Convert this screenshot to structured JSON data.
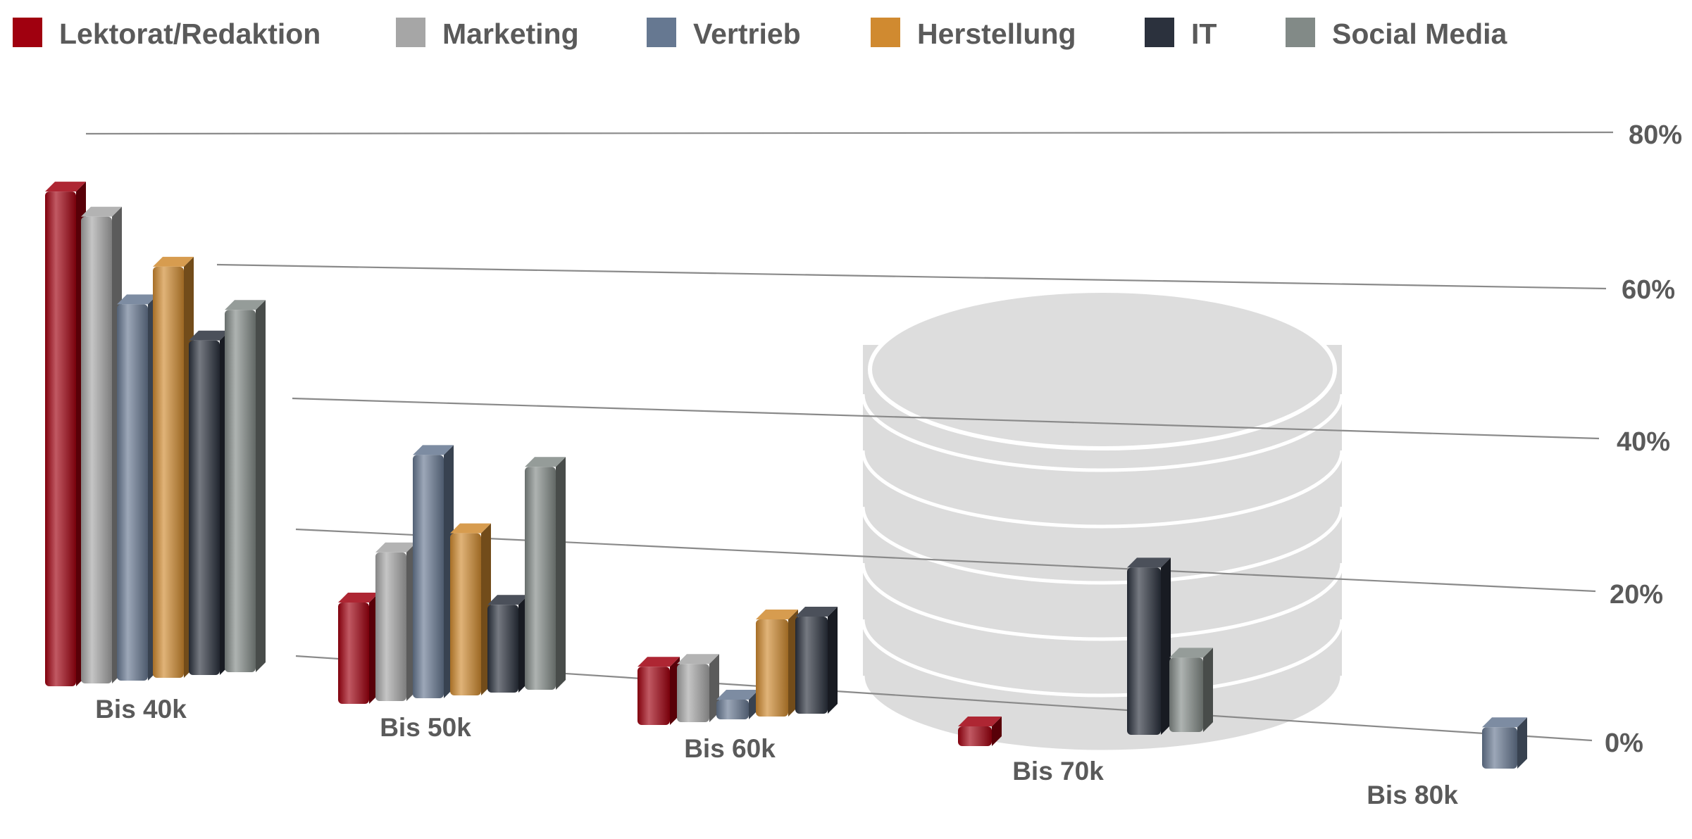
{
  "chart_data": {
    "type": "bar",
    "categories": [
      "Bis 40k",
      "Bis 50k",
      "Bis 60k",
      "Bis 70k",
      "Bis 80k"
    ],
    "series": [
      {
        "name": "Lektorat/Redaktion",
        "color": "#a0000f",
        "values": [
          71,
          15,
          9,
          2,
          0
        ]
      },
      {
        "name": "Marketing",
        "color": "#a6a6a6",
        "values": [
          67,
          22,
          9,
          0,
          0
        ]
      },
      {
        "name": "Vertrieb",
        "color": "#667891",
        "values": [
          54,
          36,
          3,
          0,
          7
        ]
      },
      {
        "name": "Herstellung",
        "color": "#d08a30",
        "values": [
          59,
          24,
          15,
          0,
          0
        ]
      },
      {
        "name": "IT",
        "color": "#2b313d",
        "values": [
          48,
          13,
          15,
          27,
          0
        ]
      },
      {
        "name": "Social Media",
        "color": "#828a87",
        "values": [
          52,
          33,
          0,
          12,
          0
        ]
      }
    ],
    "yaxis": {
      "ticks": [
        "80%",
        "60%",
        "40%",
        "20%",
        "0%"
      ],
      "ylim": [
        0,
        80
      ]
    },
    "legend_position": "top",
    "grid": true,
    "background_icon": "database-stack-icon"
  }
}
